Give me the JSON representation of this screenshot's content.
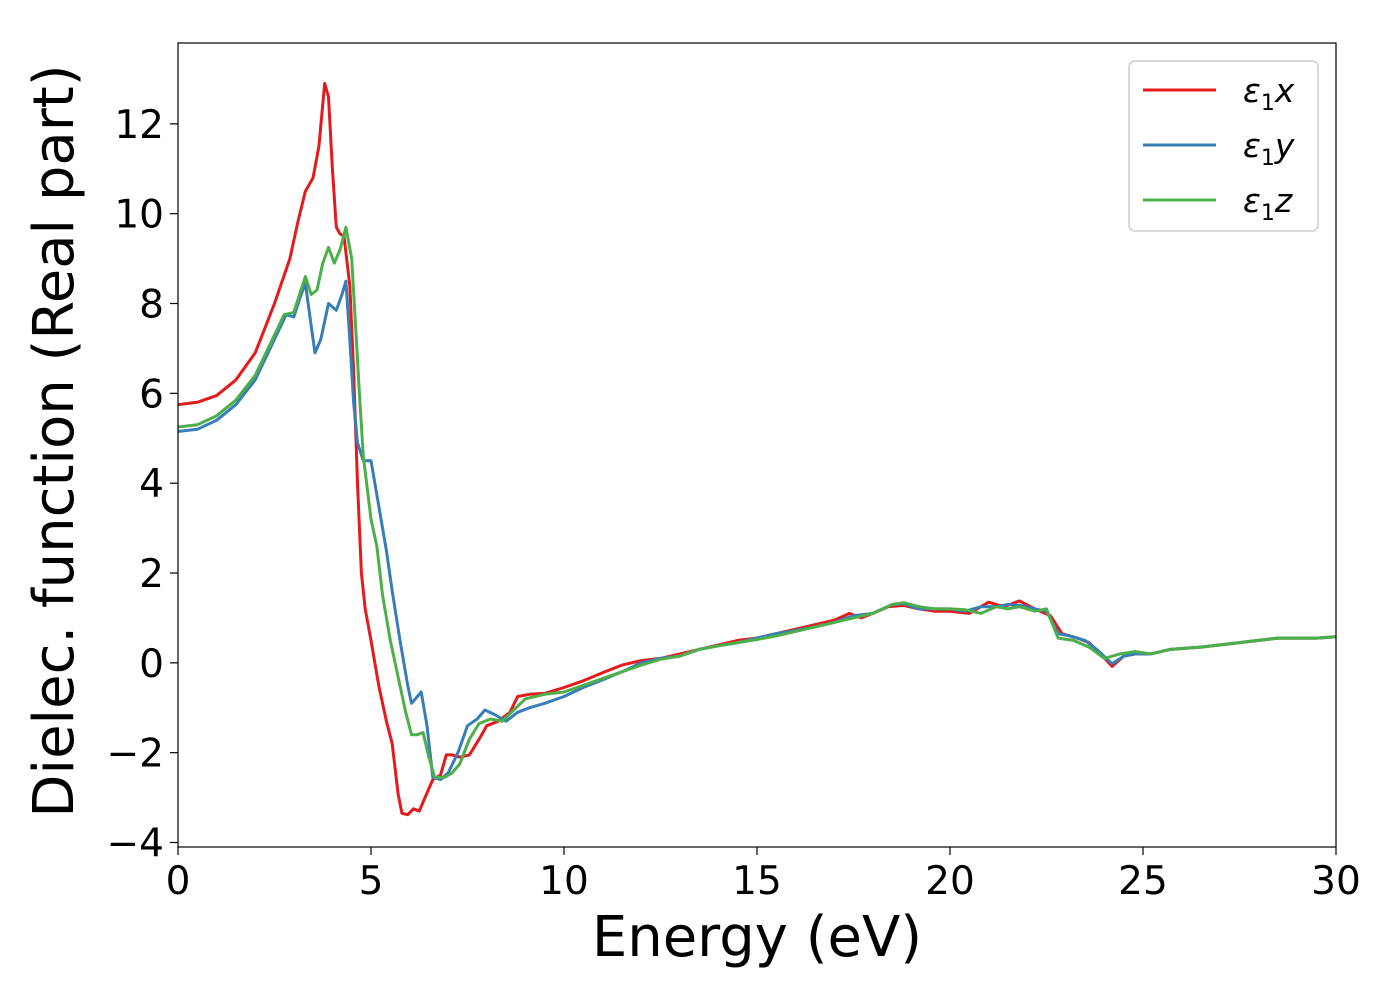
{
  "chart_data": {
    "type": "line",
    "title": "",
    "xlabel": "Energy (eV)",
    "ylabel": "Dielec. function (Real part)",
    "xlim": [
      0,
      30
    ],
    "ylim": [
      -4.1,
      13.8
    ],
    "xticks": [
      0,
      5,
      10,
      15,
      20,
      25,
      30
    ],
    "yticks": [
      -4,
      -2,
      0,
      2,
      4,
      6,
      8,
      10,
      12
    ],
    "grid": false,
    "legend_position": "top-right",
    "series": [
      {
        "name": "ε1x",
        "legend_base": "ε",
        "legend_sub": "1",
        "legend_var": "x",
        "color": "#e41a1c",
        "points": [
          [
            0,
            5.75
          ],
          [
            0.5,
            5.8
          ],
          [
            1.0,
            5.95
          ],
          [
            1.5,
            6.3
          ],
          [
            2.0,
            6.9
          ],
          [
            2.5,
            8.0
          ],
          [
            2.9,
            9.0
          ],
          [
            3.1,
            9.8
          ],
          [
            3.3,
            10.5
          ],
          [
            3.5,
            10.8
          ],
          [
            3.65,
            11.5
          ],
          [
            3.8,
            12.9
          ],
          [
            3.9,
            12.6
          ],
          [
            4.0,
            11.0
          ],
          [
            4.1,
            9.7
          ],
          [
            4.2,
            9.55
          ],
          [
            4.3,
            9.5
          ],
          [
            4.45,
            8.4
          ],
          [
            4.55,
            6.5
          ],
          [
            4.65,
            4.0
          ],
          [
            4.75,
            2.0
          ],
          [
            4.85,
            1.2
          ],
          [
            5.0,
            0.5
          ],
          [
            5.2,
            -0.5
          ],
          [
            5.4,
            -1.3
          ],
          [
            5.55,
            -1.8
          ],
          [
            5.7,
            -2.9
          ],
          [
            5.8,
            -3.35
          ],
          [
            5.95,
            -3.38
          ],
          [
            6.1,
            -3.25
          ],
          [
            6.25,
            -3.3
          ],
          [
            6.4,
            -3.0
          ],
          [
            6.6,
            -2.6
          ],
          [
            6.8,
            -2.5
          ],
          [
            6.95,
            -2.05
          ],
          [
            7.1,
            -2.05
          ],
          [
            7.3,
            -2.1
          ],
          [
            7.55,
            -2.05
          ],
          [
            7.8,
            -1.7
          ],
          [
            8.0,
            -1.4
          ],
          [
            8.3,
            -1.3
          ],
          [
            8.6,
            -1.1
          ],
          [
            8.8,
            -0.75
          ],
          [
            9.1,
            -0.7
          ],
          [
            9.5,
            -0.68
          ],
          [
            10.0,
            -0.55
          ],
          [
            10.5,
            -0.4
          ],
          [
            11.0,
            -0.22
          ],
          [
            11.5,
            -0.05
          ],
          [
            12.0,
            0.05
          ],
          [
            12.5,
            0.1
          ],
          [
            13.0,
            0.2
          ],
          [
            13.5,
            0.3
          ],
          [
            14.0,
            0.4
          ],
          [
            14.5,
            0.5
          ],
          [
            15.0,
            0.55
          ],
          [
            15.5,
            0.65
          ],
          [
            16.0,
            0.75
          ],
          [
            16.5,
            0.85
          ],
          [
            17.0,
            0.95
          ],
          [
            17.4,
            1.1
          ],
          [
            17.7,
            1.0
          ],
          [
            18.0,
            1.1
          ],
          [
            18.4,
            1.25
          ],
          [
            18.8,
            1.28
          ],
          [
            19.2,
            1.2
          ],
          [
            19.6,
            1.15
          ],
          [
            20.0,
            1.15
          ],
          [
            20.5,
            1.1
          ],
          [
            21.0,
            1.35
          ],
          [
            21.4,
            1.25
          ],
          [
            21.8,
            1.38
          ],
          [
            22.2,
            1.2
          ],
          [
            22.6,
            1.05
          ],
          [
            22.9,
            0.65
          ],
          [
            23.3,
            0.55
          ],
          [
            23.6,
            0.45
          ],
          [
            23.9,
            0.2
          ],
          [
            24.2,
            -0.08
          ],
          [
            24.5,
            0.15
          ],
          [
            24.8,
            0.2
          ],
          [
            25.2,
            0.2
          ],
          [
            25.7,
            0.3
          ],
          [
            26.5,
            0.35
          ],
          [
            27.5,
            0.45
          ],
          [
            28.5,
            0.55
          ],
          [
            29.5,
            0.55
          ],
          [
            30.0,
            0.58
          ]
        ]
      },
      {
        "name": "ε1y",
        "legend_base": "ε",
        "legend_sub": "1",
        "legend_var": "y",
        "color": "#377eb8",
        "points": [
          [
            0,
            5.15
          ],
          [
            0.5,
            5.2
          ],
          [
            1.0,
            5.4
          ],
          [
            1.5,
            5.75
          ],
          [
            2.0,
            6.3
          ],
          [
            2.5,
            7.2
          ],
          [
            2.8,
            7.75
          ],
          [
            3.0,
            7.7
          ],
          [
            3.15,
            8.1
          ],
          [
            3.3,
            8.45
          ],
          [
            3.45,
            7.5
          ],
          [
            3.55,
            6.9
          ],
          [
            3.7,
            7.2
          ],
          [
            3.9,
            8.0
          ],
          [
            4.1,
            7.85
          ],
          [
            4.25,
            8.2
          ],
          [
            4.35,
            8.5
          ],
          [
            4.45,
            7.2
          ],
          [
            4.55,
            5.8
          ],
          [
            4.65,
            4.9
          ],
          [
            4.8,
            4.5
          ],
          [
            5.0,
            4.5
          ],
          [
            5.2,
            3.5
          ],
          [
            5.4,
            2.5
          ],
          [
            5.55,
            1.6
          ],
          [
            5.75,
            0.5
          ],
          [
            5.95,
            -0.5
          ],
          [
            6.05,
            -0.9
          ],
          [
            6.15,
            -0.8
          ],
          [
            6.3,
            -0.65
          ],
          [
            6.45,
            -1.4
          ],
          [
            6.6,
            -2.55
          ],
          [
            6.8,
            -2.6
          ],
          [
            7.0,
            -2.45
          ],
          [
            7.25,
            -2.0
          ],
          [
            7.5,
            -1.4
          ],
          [
            7.75,
            -1.25
          ],
          [
            7.95,
            -1.05
          ],
          [
            8.2,
            -1.15
          ],
          [
            8.5,
            -1.3
          ],
          [
            8.8,
            -1.1
          ],
          [
            9.1,
            -1.0
          ],
          [
            9.5,
            -0.9
          ],
          [
            10.0,
            -0.75
          ],
          [
            10.5,
            -0.55
          ],
          [
            11.0,
            -0.38
          ],
          [
            11.5,
            -0.2
          ],
          [
            12.0,
            0.0
          ],
          [
            12.5,
            0.1
          ],
          [
            13.0,
            0.15
          ],
          [
            13.5,
            0.3
          ],
          [
            14.0,
            0.38
          ],
          [
            14.5,
            0.45
          ],
          [
            15.0,
            0.55
          ],
          [
            15.5,
            0.65
          ],
          [
            16.0,
            0.72
          ],
          [
            16.5,
            0.8
          ],
          [
            17.0,
            0.9
          ],
          [
            17.5,
            1.05
          ],
          [
            18.0,
            1.1
          ],
          [
            18.5,
            1.3
          ],
          [
            18.8,
            1.32
          ],
          [
            19.2,
            1.2
          ],
          [
            19.6,
            1.2
          ],
          [
            20.0,
            1.2
          ],
          [
            20.4,
            1.15
          ],
          [
            20.8,
            1.25
          ],
          [
            21.2,
            1.25
          ],
          [
            21.5,
            1.3
          ],
          [
            21.8,
            1.28
          ],
          [
            22.2,
            1.2
          ],
          [
            22.5,
            1.15
          ],
          [
            22.8,
            0.65
          ],
          [
            23.1,
            0.6
          ],
          [
            23.5,
            0.5
          ],
          [
            23.8,
            0.3
          ],
          [
            24.2,
            -0.02
          ],
          [
            24.5,
            0.15
          ],
          [
            24.8,
            0.2
          ],
          [
            25.2,
            0.2
          ],
          [
            25.7,
            0.3
          ],
          [
            26.5,
            0.35
          ],
          [
            27.5,
            0.45
          ],
          [
            28.5,
            0.55
          ],
          [
            29.5,
            0.55
          ],
          [
            30.0,
            0.58
          ]
        ]
      },
      {
        "name": "ε1z",
        "legend_base": "ε",
        "legend_sub": "1",
        "legend_var": "z",
        "color": "#4daf4a",
        "points": [
          [
            0,
            5.25
          ],
          [
            0.5,
            5.3
          ],
          [
            1.0,
            5.5
          ],
          [
            1.5,
            5.85
          ],
          [
            2.0,
            6.4
          ],
          [
            2.5,
            7.3
          ],
          [
            2.75,
            7.75
          ],
          [
            3.0,
            7.8
          ],
          [
            3.15,
            8.2
          ],
          [
            3.3,
            8.6
          ],
          [
            3.45,
            8.2
          ],
          [
            3.6,
            8.3
          ],
          [
            3.75,
            8.9
          ],
          [
            3.9,
            9.25
          ],
          [
            4.05,
            8.9
          ],
          [
            4.2,
            9.2
          ],
          [
            4.35,
            9.7
          ],
          [
            4.5,
            9.0
          ],
          [
            4.6,
            7.5
          ],
          [
            4.7,
            6.0
          ],
          [
            4.8,
            4.6
          ],
          [
            5.0,
            3.2
          ],
          [
            5.15,
            2.6
          ],
          [
            5.3,
            1.5
          ],
          [
            5.5,
            0.5
          ],
          [
            5.7,
            -0.3
          ],
          [
            5.9,
            -1.1
          ],
          [
            6.05,
            -1.6
          ],
          [
            6.2,
            -1.6
          ],
          [
            6.35,
            -1.55
          ],
          [
            6.5,
            -2.1
          ],
          [
            6.65,
            -2.55
          ],
          [
            6.9,
            -2.55
          ],
          [
            7.1,
            -2.45
          ],
          [
            7.3,
            -2.25
          ],
          [
            7.55,
            -1.7
          ],
          [
            7.8,
            -1.35
          ],
          [
            8.1,
            -1.25
          ],
          [
            8.4,
            -1.3
          ],
          [
            8.7,
            -1.05
          ],
          [
            9.0,
            -0.8
          ],
          [
            9.5,
            -0.7
          ],
          [
            10.0,
            -0.65
          ],
          [
            10.5,
            -0.5
          ],
          [
            11.0,
            -0.35
          ],
          [
            11.5,
            -0.2
          ],
          [
            12.0,
            -0.05
          ],
          [
            12.5,
            0.08
          ],
          [
            13.0,
            0.15
          ],
          [
            13.5,
            0.3
          ],
          [
            14.0,
            0.38
          ],
          [
            14.5,
            0.45
          ],
          [
            15.0,
            0.52
          ],
          [
            15.5,
            0.6
          ],
          [
            16.0,
            0.7
          ],
          [
            16.5,
            0.8
          ],
          [
            17.0,
            0.9
          ],
          [
            17.5,
            1.0
          ],
          [
            18.0,
            1.1
          ],
          [
            18.5,
            1.3
          ],
          [
            18.8,
            1.34
          ],
          [
            19.2,
            1.25
          ],
          [
            19.6,
            1.2
          ],
          [
            20.0,
            1.2
          ],
          [
            20.4,
            1.18
          ],
          [
            20.8,
            1.1
          ],
          [
            21.2,
            1.25
          ],
          [
            21.5,
            1.2
          ],
          [
            21.8,
            1.25
          ],
          [
            22.2,
            1.15
          ],
          [
            22.5,
            1.2
          ],
          [
            22.8,
            0.55
          ],
          [
            23.2,
            0.5
          ],
          [
            23.6,
            0.35
          ],
          [
            24.0,
            0.1
          ],
          [
            24.4,
            0.2
          ],
          [
            24.8,
            0.25
          ],
          [
            25.2,
            0.2
          ],
          [
            25.7,
            0.3
          ],
          [
            26.5,
            0.35
          ],
          [
            27.5,
            0.45
          ],
          [
            28.5,
            0.55
          ],
          [
            29.5,
            0.55
          ],
          [
            30.0,
            0.58
          ]
        ]
      }
    ]
  }
}
